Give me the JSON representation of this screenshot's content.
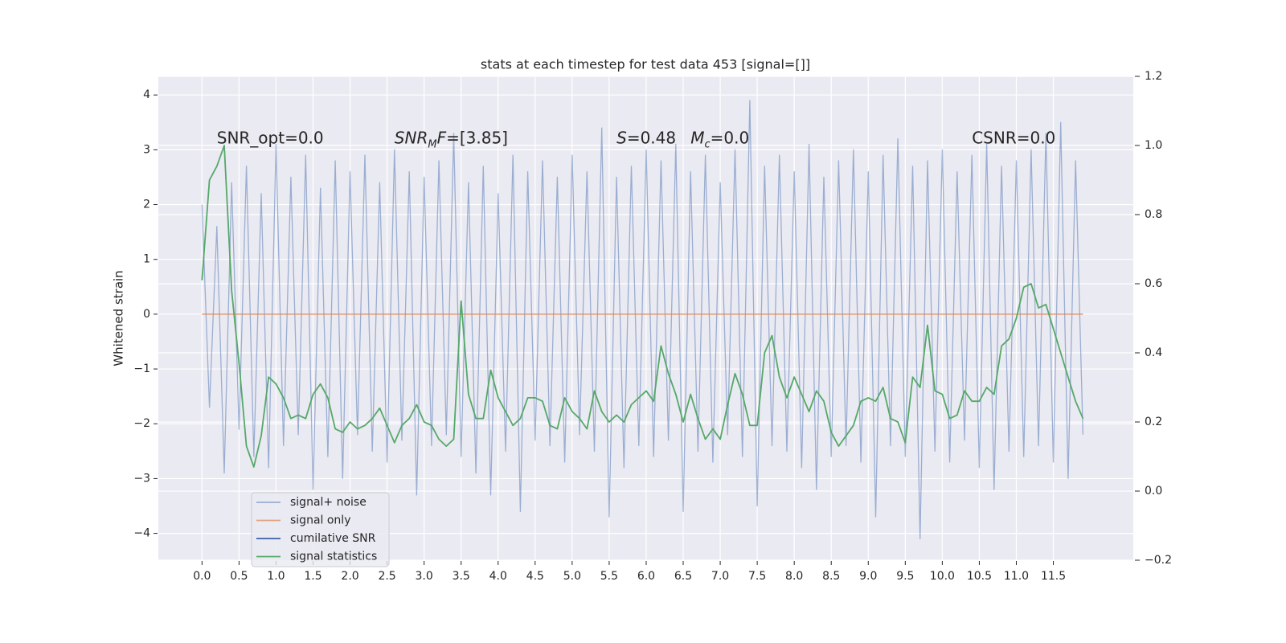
{
  "chart_data": {
    "type": "line",
    "title": "stats at each timestep for test data 453 [signal=[]]",
    "y_label": "Whitened strain",
    "grid": true,
    "legend_loc": "lower left",
    "x": [
      0,
      0.1,
      0.2,
      0.3,
      0.4,
      0.5,
      0.6,
      0.7,
      0.8,
      0.9,
      1,
      1.1,
      1.2,
      1.3,
      1.4,
      1.5,
      1.6,
      1.7,
      1.8,
      1.9,
      2,
      2.1,
      2.2,
      2.3,
      2.4,
      2.5,
      2.6,
      2.7,
      2.8,
      2.9,
      3,
      3.1,
      3.2,
      3.3,
      3.4,
      3.5,
      3.6,
      3.7,
      3.8,
      3.9,
      4,
      4.1,
      4.2,
      4.3,
      4.4,
      4.5,
      4.6,
      4.7,
      4.8,
      4.9,
      5,
      5.1,
      5.2,
      5.3,
      5.4,
      5.5,
      5.6,
      5.7,
      5.8,
      5.9,
      6,
      6.1,
      6.2,
      6.3,
      6.4,
      6.5,
      6.6,
      6.7,
      6.8,
      6.9,
      7,
      7.1,
      7.2,
      7.3,
      7.4,
      7.5,
      7.6,
      7.7,
      7.8,
      7.9,
      8,
      8.1,
      8.2,
      8.3,
      8.4,
      8.5,
      8.6,
      8.7,
      8.8,
      8.9,
      9,
      9.1,
      9.2,
      9.3,
      9.4,
      9.5,
      9.6,
      9.7,
      9.8,
      9.9,
      10,
      10.1,
      10.2,
      10.3,
      10.4,
      10.5,
      10.6,
      10.7,
      10.8,
      10.9,
      11,
      11.1,
      11.2,
      11.3,
      11.4,
      11.5,
      11.6,
      11.7,
      11.8,
      11.9
    ],
    "series": [
      {
        "name": "signal+ noise",
        "color": "#4c72b0",
        "alpha": 0.5,
        "values": [
          2.0,
          -1.7,
          1.6,
          -2.9,
          2.4,
          -2.1,
          2.7,
          -2.6,
          2.2,
          -2.8,
          3.1,
          -2.4,
          2.5,
          -2.2,
          2.9,
          -3.2,
          2.3,
          -2.6,
          2.8,
          -3.0,
          2.6,
          -2.2,
          2.9,
          -2.5,
          2.4,
          -2.7,
          3.0,
          -2.3,
          2.6,
          -3.3,
          2.5,
          -2.4,
          2.8,
          -2.2,
          3.3,
          -2.6,
          2.4,
          -2.9,
          2.7,
          -3.3,
          2.2,
          -2.5,
          2.9,
          -3.6,
          2.6,
          -2.3,
          2.8,
          -2.4,
          2.5,
          -2.7,
          2.9,
          -2.2,
          2.6,
          -2.5,
          3.4,
          -3.7,
          2.5,
          -2.8,
          2.7,
          -2.4,
          3.0,
          -2.6,
          2.8,
          -2.3,
          3.1,
          -3.6,
          2.6,
          -2.5,
          2.9,
          -2.7,
          2.4,
          -2.2,
          3.0,
          -2.6,
          3.9,
          -3.5,
          2.7,
          -2.4,
          2.9,
          -2.5,
          2.6,
          -2.8,
          3.1,
          -3.2,
          2.5,
          -2.6,
          2.8,
          -2.4,
          3.0,
          -2.7,
          2.6,
          -3.7,
          2.9,
          -2.4,
          3.2,
          -2.6,
          2.7,
          -4.1,
          2.8,
          -2.5,
          3.0,
          -2.7,
          2.6,
          -2.3,
          2.9,
          -2.8,
          3.1,
          -3.2,
          2.7,
          -2.5,
          2.8,
          -2.6,
          3.0,
          -2.4,
          3.3,
          -2.7,
          3.5,
          -3.0,
          2.8,
          -2.2
        ]
      },
      {
        "name": "signal only",
        "color": "#dd8452",
        "alpha": 0.7,
        "values": [
          0,
          0,
          0,
          0,
          0,
          0,
          0,
          0,
          0,
          0,
          0,
          0,
          0,
          0,
          0,
          0,
          0,
          0,
          0,
          0,
          0,
          0,
          0,
          0,
          0,
          0,
          0,
          0,
          0,
          0,
          0,
          0,
          0,
          0,
          0,
          0,
          0,
          0,
          0,
          0,
          0,
          0,
          0,
          0,
          0,
          0,
          0,
          0,
          0,
          0,
          0,
          0,
          0,
          0,
          0,
          0,
          0,
          0,
          0,
          0,
          0,
          0,
          0,
          0,
          0,
          0,
          0,
          0,
          0,
          0,
          0,
          0,
          0,
          0,
          0,
          0,
          0,
          0,
          0,
          0,
          0,
          0,
          0,
          0,
          0,
          0,
          0,
          0,
          0,
          0,
          0,
          0,
          0,
          0,
          0,
          0,
          0,
          0,
          0,
          0,
          0,
          0,
          0,
          0,
          0,
          0,
          0,
          0,
          0,
          0,
          0,
          0,
          0,
          0,
          0,
          0,
          0,
          0,
          0,
          0
        ]
      },
      {
        "name": "cumilative SNR",
        "color": "#3b5ea8",
        "alpha": 1,
        "axis": "y2",
        "values": [
          null,
          null,
          null,
          null,
          null,
          null,
          null,
          null,
          null,
          null,
          null,
          null,
          null,
          null,
          null,
          null,
          null,
          null,
          null,
          null,
          null,
          null,
          null,
          null,
          null,
          null,
          null,
          null,
          null,
          null,
          null,
          null,
          null,
          null,
          null,
          null,
          null,
          null,
          null,
          null,
          null,
          null,
          null,
          null,
          null,
          null,
          null,
          null,
          null,
          null,
          null,
          null,
          null,
          null,
          null,
          null,
          null,
          null,
          null,
          null,
          null,
          null,
          null,
          null,
          null,
          null,
          null,
          null,
          null,
          null,
          null,
          null,
          null,
          null,
          null,
          null,
          null,
          null,
          null,
          null,
          null,
          null,
          null,
          null,
          null,
          null,
          null,
          null,
          null,
          null,
          null,
          null,
          null,
          null,
          null,
          null,
          null,
          null,
          null,
          null,
          null,
          null,
          null,
          null,
          null,
          null,
          null,
          null,
          null,
          null,
          null,
          null,
          null,
          null,
          null,
          null,
          null,
          null,
          null,
          null
        ]
      },
      {
        "name": "signal statistics",
        "color": "#55a868",
        "alpha": 1,
        "axis": "y2",
        "values": [
          0.61,
          0.9,
          0.94,
          1.0,
          0.58,
          0.37,
          0.13,
          0.07,
          0.16,
          0.33,
          0.31,
          0.27,
          0.21,
          0.22,
          0.21,
          0.28,
          0.31,
          0.27,
          0.18,
          0.17,
          0.2,
          0.18,
          0.19,
          0.21,
          0.24,
          0.19,
          0.14,
          0.19,
          0.21,
          0.25,
          0.2,
          0.19,
          0.15,
          0.13,
          0.15,
          0.55,
          0.28,
          0.21,
          0.21,
          0.35,
          0.27,
          0.23,
          0.19,
          0.21,
          0.27,
          0.27,
          0.26,
          0.19,
          0.18,
          0.27,
          0.23,
          0.21,
          0.18,
          0.29,
          0.23,
          0.2,
          0.22,
          0.2,
          0.25,
          0.27,
          0.29,
          0.26,
          0.42,
          0.34,
          0.28,
          0.2,
          0.28,
          0.21,
          0.15,
          0.18,
          0.15,
          0.25,
          0.34,
          0.28,
          0.19,
          0.19,
          0.4,
          0.45,
          0.33,
          0.27,
          0.33,
          0.28,
          0.23,
          0.29,
          0.26,
          0.17,
          0.13,
          0.16,
          0.19,
          0.26,
          0.27,
          0.26,
          0.3,
          0.21,
          0.2,
          0.14,
          0.33,
          0.3,
          0.48,
          0.29,
          0.28,
          0.21,
          0.22,
          0.29,
          0.26,
          0.26,
          0.3,
          0.28,
          0.42,
          0.44,
          0.5,
          0.59,
          0.6,
          0.53,
          0.54,
          0.47,
          0.4,
          0.33,
          0.26,
          0.21
        ]
      }
    ],
    "xlim": [
      -0.59,
      12.58
    ],
    "xticks": [
      {
        "value": 0,
        "label": "0.0"
      },
      0.5,
      {
        "value": 1,
        "label": "1.0"
      },
      1.5,
      {
        "value": 2,
        "label": "2.0"
      },
      2.5,
      {
        "value": 3,
        "label": "3.0"
      },
      3.5,
      {
        "value": 4,
        "label": "4.0"
      },
      4.5,
      {
        "value": 5,
        "label": "5.0"
      },
      5.5,
      {
        "value": 6,
        "label": "6.0"
      },
      6.5,
      {
        "value": 7,
        "label": "7.0"
      },
      7.5,
      {
        "value": 8,
        "label": "8.0"
      },
      8.5,
      {
        "value": 9,
        "label": "9.0"
      },
      9.5,
      {
        "value": 10,
        "label": "10.0"
      },
      10.5,
      {
        "value": 11,
        "label": "11.0"
      },
      11.5
    ],
    "ylim": [
      -4.49,
      4.34
    ],
    "yticks": [
      {
        "value": -4,
        "label": "−4"
      },
      {
        "value": -3,
        "label": "−3"
      },
      {
        "value": -2,
        "label": "−2"
      },
      {
        "value": -1,
        "label": "−1"
      },
      0,
      1,
      2,
      3,
      4
    ],
    "y2lim": [
      -0.2,
      1.2
    ],
    "y2ticks": [
      {
        "value": -0.2,
        "label": "−0.2"
      },
      {
        "value": 0,
        "label": "0.0"
      },
      0.2,
      0.4,
      0.6,
      0.8,
      {
        "value": 1,
        "label": "1.0"
      },
      1.2
    ],
    "annotations": [
      {
        "x": 0.2,
        "y": 3.2,
        "parts": [
          {
            "text": "SNR_opt=0.0",
            "style": "normal"
          }
        ]
      },
      {
        "x": 2.6,
        "y": 3.2,
        "parts": [
          {
            "text": "SNR",
            "style": "italic"
          },
          {
            "text": "M",
            "style": "sub"
          },
          {
            "text": "F",
            "style": "italic"
          },
          {
            "text": "=[3.85]",
            "style": "normal"
          }
        ]
      },
      {
        "x": 5.6,
        "y": 3.2,
        "parts": [
          {
            "text": "S",
            "style": "italic"
          },
          {
            "text": "=0.48",
            "style": "normal"
          }
        ]
      },
      {
        "x": 6.6,
        "y": 3.2,
        "parts": [
          {
            "text": "M",
            "style": "italic"
          },
          {
            "text": "c",
            "style": "sub"
          },
          {
            "text": "=0.0",
            "style": "normal"
          }
        ]
      },
      {
        "x": 10.4,
        "y": 3.2,
        "parts": [
          {
            "text": "CSNR=0.0",
            "style": "normal"
          }
        ]
      }
    ]
  }
}
